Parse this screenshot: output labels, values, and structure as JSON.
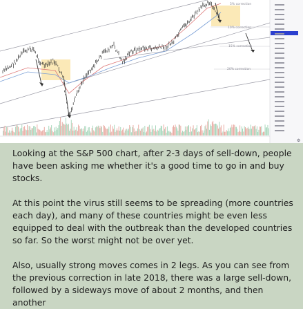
{
  "chart_image": {
    "annotations": [
      "5% correction",
      "10% correction",
      "15% correction",
      "20% correction"
    ],
    "price_tag_color": "#2b3fcf",
    "candle_color": "#333333",
    "volume_up_color": "#9fd3b5",
    "volume_down_color": "#e7a39a",
    "highlight_color": "#fbe9b7"
  },
  "post": {
    "paragraph1": "Looking at the S&P 500 chart, after 2-3 days of sell-down, people have been asking me whether it's a good time to go in and buy stocks.",
    "paragraph2": "At this point the virus still seems to be spreading (more countries each day), and many of these countries might be even less equipped to deal with the outbreak than the developed countries so far. So the worst might not be over yet.",
    "paragraph3": "Also, usually strong moves comes in 2 legs. As you can see from the previous correction in late 2018, there was a large sell-down, followed by a sideways move of about 2 months, and then another"
  }
}
